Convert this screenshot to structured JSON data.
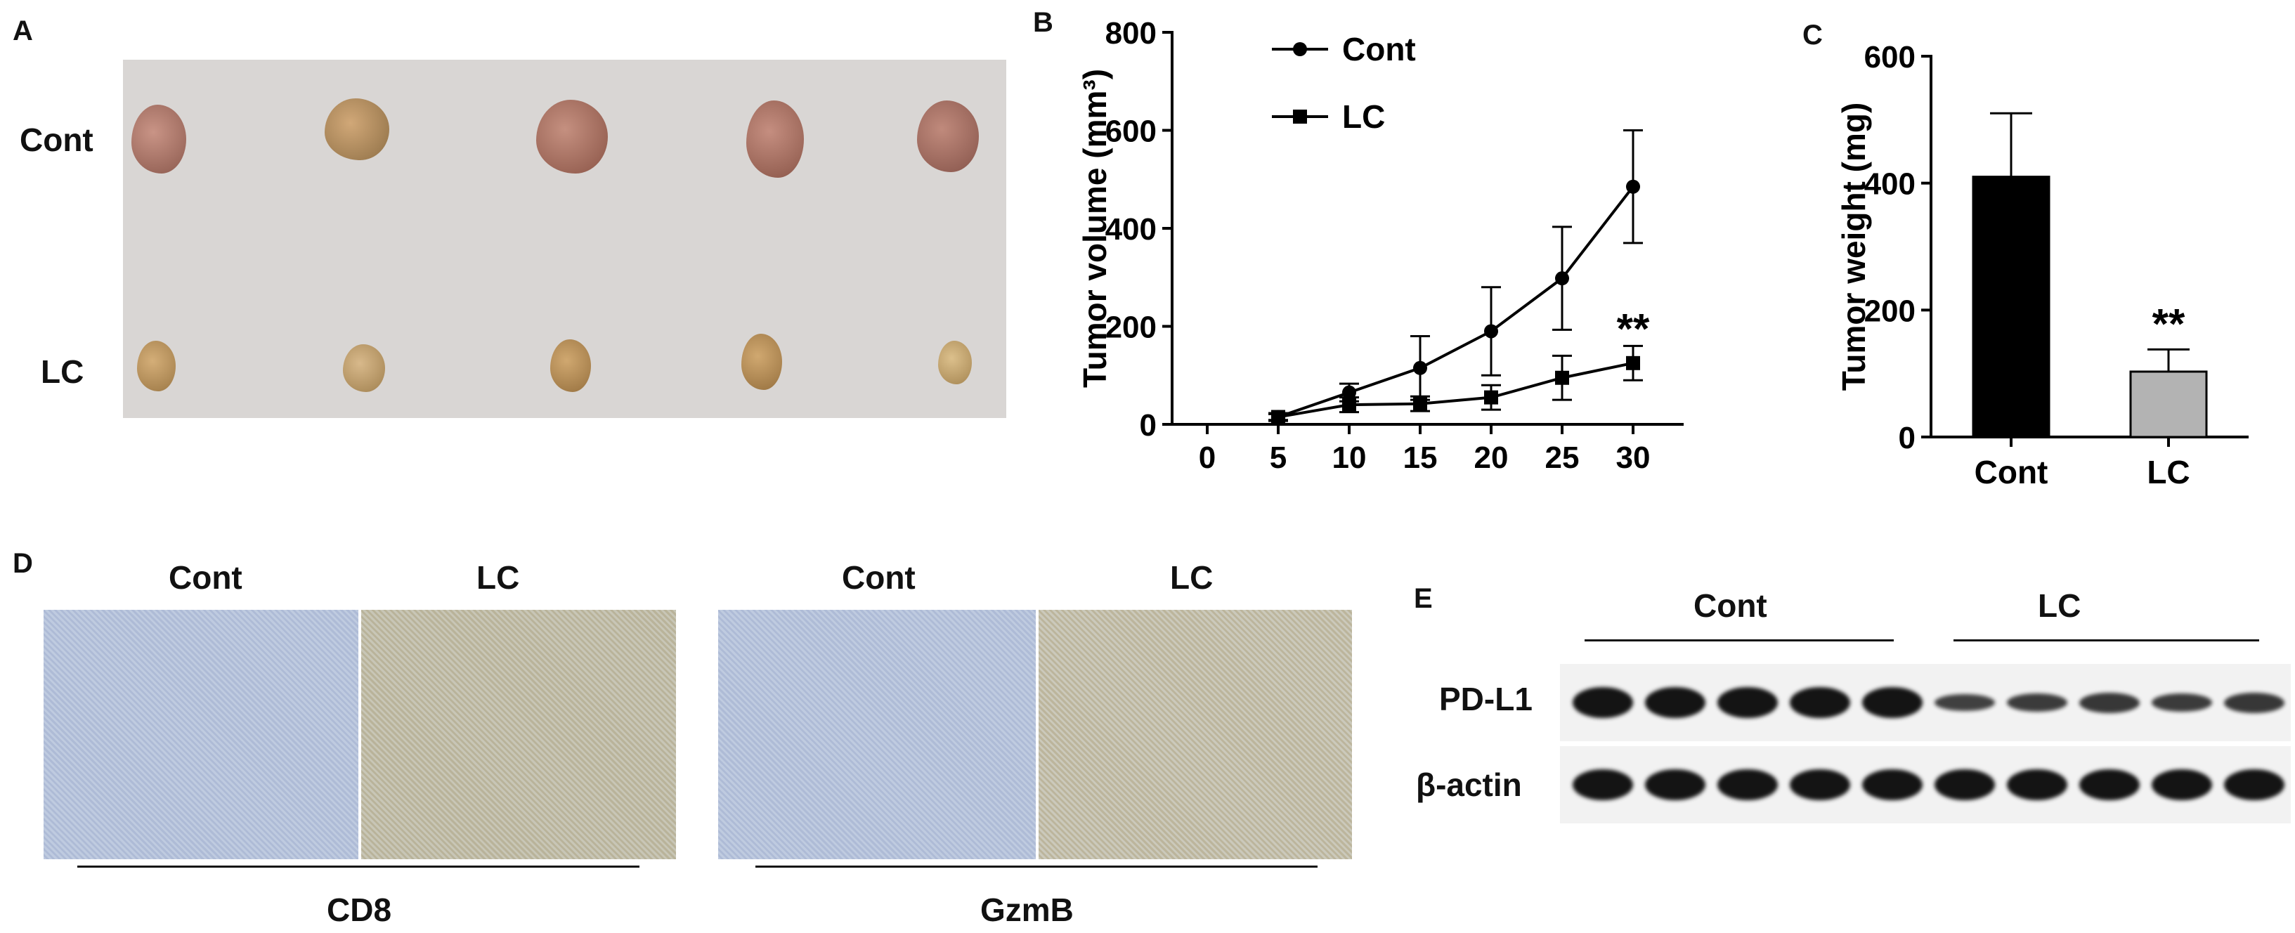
{
  "panels": {
    "a": {
      "letter": "A",
      "row_labels": [
        "Cont",
        "LC"
      ]
    },
    "b": {
      "letter": "B"
    },
    "c": {
      "letter": "C"
    },
    "d": {
      "letter": "D",
      "groups": [
        {
          "headers": [
            "Cont",
            "LC"
          ],
          "marker": "CD8"
        },
        {
          "headers": [
            "Cont",
            "LC"
          ],
          "marker": "GzmB"
        }
      ]
    },
    "e": {
      "letter": "E",
      "group_labels": [
        "Cont",
        "LC"
      ],
      "row_labels": [
        "PD-L1",
        "β-actin"
      ],
      "pdl1_relative_band_intensity": [
        1,
        1,
        1,
        1,
        1,
        0.55,
        0.6,
        0.65,
        0.6,
        0.65
      ],
      "actin_relative_band_intensity": [
        1,
        1,
        1,
        1,
        1,
        1,
        1,
        1,
        1,
        1
      ]
    }
  },
  "chart_data": [
    {
      "type": "line",
      "title": "",
      "xlabel": "",
      "ylabel": "Tumor volume (mm³)",
      "ylim": [
        0,
        800
      ],
      "yticks": [
        0,
        200,
        400,
        600,
        800
      ],
      "x": [
        0,
        5,
        10,
        15,
        20,
        25,
        30
      ],
      "x_tick_labels": [
        "0",
        "5",
        "10",
        "15",
        "20",
        "25",
        "30"
      ],
      "series": [
        {
          "name": "Cont",
          "marker": "circle",
          "x": [
            5,
            10,
            15,
            20,
            25,
            30
          ],
          "values": [
            15,
            65,
            115,
            190,
            298,
            485
          ],
          "errors": [
            8,
            18,
            65,
            90,
            105,
            115
          ]
        },
        {
          "name": "LC",
          "marker": "square",
          "x": [
            5,
            10,
            15,
            20,
            25,
            30
          ],
          "values": [
            15,
            40,
            42,
            55,
            95,
            125
          ],
          "errors": [
            6,
            15,
            15,
            25,
            45,
            35
          ]
        }
      ],
      "annotations": [
        {
          "text": "**",
          "x": 30,
          "y": 200
        }
      ],
      "legend": "top-left"
    },
    {
      "type": "bar",
      "title": "",
      "xlabel": "",
      "ylabel": "Tumor weight (mg)",
      "ylim": [
        0,
        600
      ],
      "yticks": [
        0,
        200,
        400,
        600
      ],
      "categories": [
        "Cont",
        "LC"
      ],
      "values": [
        410,
        103
      ],
      "errors": [
        100,
        35
      ],
      "colors": [
        "#000000",
        "#b3b3b3"
      ],
      "annotations": [
        {
          "text": "**",
          "category": "LC"
        }
      ]
    }
  ]
}
